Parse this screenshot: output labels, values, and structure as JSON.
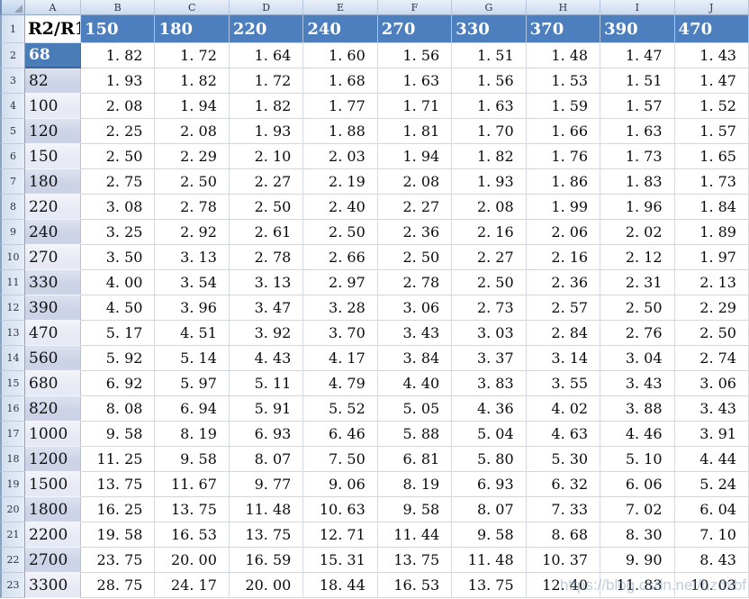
{
  "sheet": {
    "column_letters": [
      "A",
      "B",
      "C",
      "D",
      "E",
      "F",
      "G",
      "H",
      "I",
      "J"
    ],
    "header_row": {
      "num": "1",
      "label": "R2/R1",
      "values": [
        "150",
        "180",
        "220",
        "240",
        "270",
        "330",
        "370",
        "390",
        "470"
      ]
    },
    "rows": [
      {
        "num": "2",
        "label": "68",
        "selected": true,
        "shade": "dark",
        "values": [
          "1.82",
          "1.72",
          "1.64",
          "1.60",
          "1.56",
          "1.51",
          "1.48",
          "1.47",
          "1.43"
        ]
      },
      {
        "num": "3",
        "label": "82",
        "selected": false,
        "shade": "dark",
        "values": [
          "1.93",
          "1.82",
          "1.72",
          "1.68",
          "1.63",
          "1.56",
          "1.53",
          "1.51",
          "1.47"
        ]
      },
      {
        "num": "4",
        "label": "100",
        "selected": false,
        "shade": "light",
        "values": [
          "2.08",
          "1.94",
          "1.82",
          "1.77",
          "1.71",
          "1.63",
          "1.59",
          "1.57",
          "1.52"
        ]
      },
      {
        "num": "5",
        "label": "120",
        "selected": false,
        "shade": "dark",
        "values": [
          "2.25",
          "2.08",
          "1.93",
          "1.88",
          "1.81",
          "1.70",
          "1.66",
          "1.63",
          "1.57"
        ]
      },
      {
        "num": "6",
        "label": "150",
        "selected": false,
        "shade": "light",
        "values": [
          "2.50",
          "2.29",
          "2.10",
          "2.03",
          "1.94",
          "1.82",
          "1.76",
          "1.73",
          "1.65"
        ]
      },
      {
        "num": "7",
        "label": "180",
        "selected": false,
        "shade": "dark",
        "values": [
          "2.75",
          "2.50",
          "2.27",
          "2.19",
          "2.08",
          "1.93",
          "1.86",
          "1.83",
          "1.73"
        ]
      },
      {
        "num": "8",
        "label": "220",
        "selected": false,
        "shade": "light",
        "values": [
          "3.08",
          "2.78",
          "2.50",
          "2.40",
          "2.27",
          "2.08",
          "1.99",
          "1.96",
          "1.84"
        ]
      },
      {
        "num": "9",
        "label": "240",
        "selected": false,
        "shade": "dark",
        "values": [
          "3.25",
          "2.92",
          "2.61",
          "2.50",
          "2.36",
          "2.16",
          "2.06",
          "2.02",
          "1.89"
        ]
      },
      {
        "num": "10",
        "label": "270",
        "selected": false,
        "shade": "light",
        "values": [
          "3.50",
          "3.13",
          "2.78",
          "2.66",
          "2.50",
          "2.27",
          "2.16",
          "2.12",
          "1.97"
        ]
      },
      {
        "num": "11",
        "label": "330",
        "selected": false,
        "shade": "dark",
        "values": [
          "4.00",
          "3.54",
          "3.13",
          "2.97",
          "2.78",
          "2.50",
          "2.36",
          "2.31",
          "2.13"
        ]
      },
      {
        "num": "12",
        "label": "390",
        "selected": false,
        "shade": "dark",
        "values": [
          "4.50",
          "3.96",
          "3.47",
          "3.28",
          "3.06",
          "2.73",
          "2.57",
          "2.50",
          "2.29"
        ]
      },
      {
        "num": "13",
        "label": "470",
        "selected": false,
        "shade": "light",
        "values": [
          "5.17",
          "4.51",
          "3.92",
          "3.70",
          "3.43",
          "3.03",
          "2.84",
          "2.76",
          "2.50"
        ]
      },
      {
        "num": "14",
        "label": "560",
        "selected": false,
        "shade": "dark",
        "values": [
          "5.92",
          "5.14",
          "4.43",
          "4.17",
          "3.84",
          "3.37",
          "3.14",
          "3.04",
          "2.74"
        ]
      },
      {
        "num": "15",
        "label": "680",
        "selected": false,
        "shade": "light",
        "values": [
          "6.92",
          "5.97",
          "5.11",
          "4.79",
          "4.40",
          "3.83",
          "3.55",
          "3.43",
          "3.06"
        ]
      },
      {
        "num": "16",
        "label": "820",
        "selected": false,
        "shade": "dark",
        "values": [
          "8.08",
          "6.94",
          "5.91",
          "5.52",
          "5.05",
          "4.36",
          "4.02",
          "3.88",
          "3.43"
        ]
      },
      {
        "num": "17",
        "label": "1000",
        "selected": false,
        "shade": "light",
        "values": [
          "9.58",
          "8.19",
          "6.93",
          "6.46",
          "5.88",
          "5.04",
          "4.63",
          "4.46",
          "3.91"
        ]
      },
      {
        "num": "18",
        "label": "1200",
        "selected": false,
        "shade": "dark",
        "values": [
          "11.25",
          "9.58",
          "8.07",
          "7.50",
          "6.81",
          "5.80",
          "5.30",
          "5.10",
          "4.44"
        ]
      },
      {
        "num": "19",
        "label": "1500",
        "selected": false,
        "shade": "light",
        "values": [
          "13.75",
          "11.67",
          "9.77",
          "9.06",
          "8.19",
          "6.93",
          "6.32",
          "6.06",
          "5.24"
        ]
      },
      {
        "num": "20",
        "label": "1800",
        "selected": false,
        "shade": "dark",
        "values": [
          "16.25",
          "13.75",
          "11.48",
          "10.63",
          "9.58",
          "8.07",
          "7.33",
          "7.02",
          "6.04"
        ]
      },
      {
        "num": "21",
        "label": "2200",
        "selected": false,
        "shade": "light",
        "values": [
          "19.58",
          "16.53",
          "13.75",
          "12.71",
          "11.44",
          "9.58",
          "8.68",
          "8.30",
          "7.10"
        ]
      },
      {
        "num": "22",
        "label": "2700",
        "selected": false,
        "shade": "dark",
        "values": [
          "23.75",
          "20.00",
          "16.59",
          "15.31",
          "13.75",
          "11.48",
          "10.37",
          "9.90",
          "8.43"
        ]
      },
      {
        "num": "23",
        "label": "3300",
        "selected": false,
        "shade": "light",
        "values": [
          "28.75",
          "24.17",
          "20.00",
          "18.44",
          "16.53",
          "13.75",
          "12.40",
          "11.83",
          "10.03"
        ]
      }
    ]
  },
  "watermark": {
    "text": "https://blog.csdn.net/hzdxbf"
  },
  "colors": {
    "header_fill": "#4d7ebd",
    "selected_cell_fill": "#4a7cb8",
    "band_dark": "#ccd3e6",
    "band_light": "#e7eaf4",
    "gridline": "#d2dbe9",
    "chrome_blue": "#cbdaee"
  }
}
